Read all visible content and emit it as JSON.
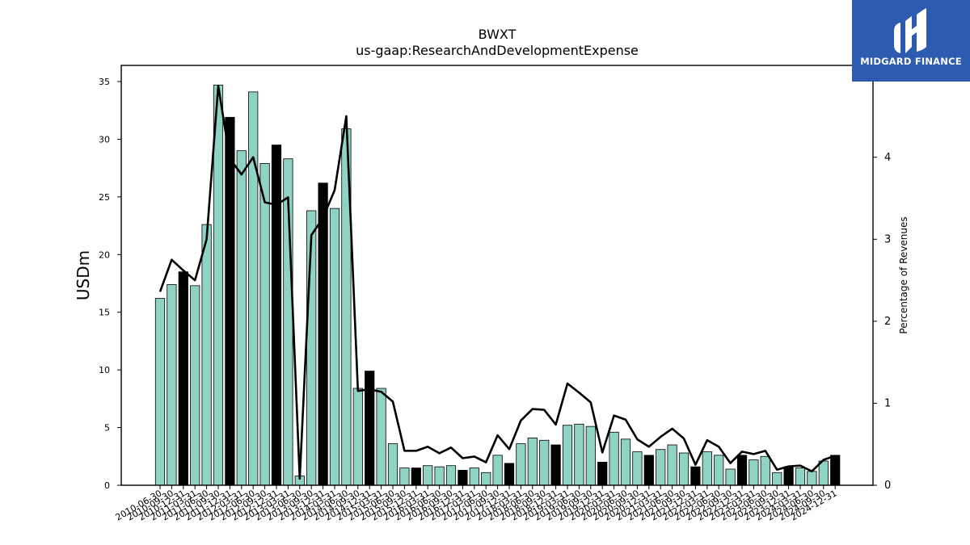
{
  "chart_data": {
    "type": "bar+line",
    "title": "BWXT",
    "subtitle": "us-gaap:ResearchAndDevelopmentExpense",
    "ylabel": "USDm",
    "ylabel_right": "Percentage of Revenues",
    "ylim": [
      0,
      36.4
    ],
    "ylim_right": [
      0,
      5.12
    ],
    "yticks": [
      0,
      5,
      10,
      15,
      20,
      25,
      30,
      35
    ],
    "yticks_right": [
      0,
      1,
      2,
      3,
      4
    ],
    "colors": {
      "quarter_bar": "#8fd3c4",
      "annual_bar": "#000000",
      "line": "#000000"
    },
    "categories": [
      "2010-06-30",
      "2010-09-30",
      "2010-12-31",
      "2011-03-31",
      "2011-06-30",
      "2011-09-30",
      "2011-12-31",
      "2012-03-31",
      "2012-06-30",
      "2012-09-30",
      "2012-12-31",
      "2013-03-31",
      "2013-06-30",
      "2013-09-30",
      "2013-12-31",
      "2014-03-31",
      "2014-06-30",
      "2014-09-30",
      "2014-12-31",
      "2015-03-31",
      "2015-06-30",
      "2015-09-30",
      "2015-12-31",
      "2016-03-31",
      "2016-06-30",
      "2016-09-30",
      "2016-12-31",
      "2017-03-31",
      "2017-06-30",
      "2017-09-30",
      "2017-12-31",
      "2018-03-31",
      "2018-06-30",
      "2018-09-30",
      "2018-12-31",
      "2019-03-31",
      "2019-06-30",
      "2019-09-30",
      "2019-12-31",
      "2020-03-31",
      "2020-06-30",
      "2020-09-30",
      "2020-12-31",
      "2021-03-31",
      "2021-06-30",
      "2021-09-30",
      "2021-12-31",
      "2022-03-31",
      "2022-06-30",
      "2022-09-30",
      "2022-12-31",
      "2023-03-31",
      "2023-06-30",
      "2023-09-30",
      "2023-12-31",
      "2024-03-31",
      "2024-06-30",
      "2024-09-30",
      "2024-12-31"
    ],
    "tick_labels": [
      "2010-06-30",
      "2010-09-30",
      "2010-12-31",
      "2011-03-31",
      "2011-06-30",
      "2011-09-30",
      "2011-12-31",
      "2012-03-31",
      "2012-06-30",
      "2012-09-30",
      "2012-12-31",
      "2013-03-31",
      "2013-06-30",
      "2013-09-30",
      "2013-12-31",
      "2014-03-31",
      "2014-06-30",
      "2014-09-30",
      "2014-12-31",
      "2015-03-31",
      "2015-06-30",
      "2015-09-30",
      "2015-12-31",
      "2016-03-31",
      "2016-06-30",
      "2016-09-30",
      "2016-12-31",
      "2017-03-31",
      "2017-06-30",
      "2017-09-30",
      "2017-12-31",
      "2018-03-31",
      "2018-06-30",
      "2018-09-30",
      "2018-12-31",
      "2019-03-31",
      "2019-06-30",
      "2019-09-30",
      "2019-12-31",
      "2020-03-31",
      "2020-06-30",
      "2020-09-30",
      "2020-12-31",
      "2021-03-31",
      "2021-06-30",
      "2021-09-30",
      "2021-12-31",
      "2022-03-31",
      "2022-06-30",
      "2022-09-30",
      "2022-12-31",
      "2023-03-31",
      "2023-06-30",
      "2023-09-30",
      "2023-12-31",
      "2024-03-31",
      "2024-06-30",
      "2024-09-30",
      "2024-12-31"
    ],
    "series": [
      {
        "kind": "bar",
        "values": [
          16.2,
          17.4,
          18.5,
          17.3,
          22.6,
          34.7,
          31.9,
          29.0,
          34.1,
          27.9,
          29.5,
          28.3,
          0.8,
          23.8,
          26.2,
          24.0,
          30.9,
          8.4,
          9.9,
          8.4,
          3.6,
          1.5,
          1.5,
          1.7,
          1.6,
          1.7,
          1.3,
          1.5,
          1.1,
          2.6,
          1.9,
          3.6,
          4.1,
          3.9,
          3.5,
          5.2,
          5.3,
          5.1,
          2.0,
          4.6,
          4.0,
          2.9,
          2.6,
          3.1,
          3.5,
          2.8,
          1.6,
          2.9,
          2.6,
          1.4,
          2.6,
          2.2,
          2.5,
          1.1,
          1.6,
          1.5,
          1.2,
          2.1,
          2.6
        ],
        "annual": [
          false,
          false,
          true,
          false,
          false,
          false,
          true,
          false,
          false,
          false,
          true,
          false,
          false,
          false,
          true,
          false,
          false,
          false,
          true,
          false,
          false,
          false,
          true,
          false,
          false,
          false,
          true,
          false,
          false,
          false,
          true,
          false,
          false,
          false,
          true,
          false,
          false,
          false,
          true,
          false,
          false,
          false,
          true,
          false,
          false,
          false,
          true,
          false,
          false,
          false,
          true,
          false,
          false,
          false,
          true,
          false,
          false,
          false,
          true
        ]
      },
      {
        "kind": "line",
        "axis": "right",
        "values": [
          2.36,
          2.75,
          2.62,
          2.5,
          3.0,
          4.87,
          3.98,
          3.79,
          4.0,
          3.45,
          3.42,
          3.51,
          0.08,
          3.05,
          3.26,
          3.6,
          4.5,
          1.15,
          1.17,
          1.14,
          1.02,
          0.42,
          0.42,
          0.47,
          0.39,
          0.46,
          0.33,
          0.35,
          0.28,
          0.61,
          0.44,
          0.79,
          0.93,
          0.92,
          0.74,
          1.24,
          1.13,
          1.01,
          0.4,
          0.85,
          0.8,
          0.56,
          0.47,
          0.59,
          0.69,
          0.57,
          0.25,
          0.55,
          0.47,
          0.27,
          0.41,
          0.38,
          0.42,
          0.19,
          0.23,
          0.24,
          0.17,
          0.31,
          0.36
        ]
      }
    ]
  },
  "logo": {
    "text": "MIDGARD FINANCE",
    "mark": "midgard-logo-icon",
    "bg": "#2d5bb0"
  }
}
